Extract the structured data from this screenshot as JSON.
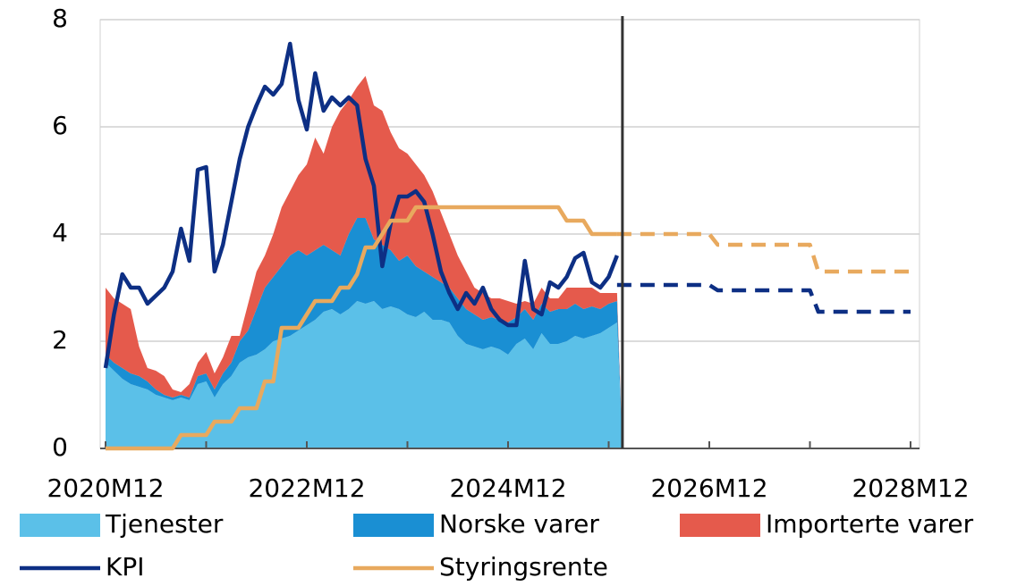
{
  "chart_data": {
    "type": "stacked-area-line",
    "categories": [
      "2020M12",
      null,
      null,
      null,
      null,
      null,
      null,
      null,
      null,
      null,
      null,
      null,
      null,
      null,
      null,
      null,
      null,
      null,
      null,
      null,
      null,
      null,
      null,
      null,
      "2022M12",
      null,
      null,
      null,
      null,
      null,
      null,
      null,
      null,
      null,
      null,
      null,
      null,
      null,
      null,
      null,
      null,
      null,
      null,
      null,
      null,
      null,
      null,
      null,
      "2024M12",
      null,
      null,
      null,
      null,
      null,
      null,
      null,
      null,
      null,
      null,
      null,
      null,
      null,
      null,
      null,
      null,
      null,
      null,
      null,
      null,
      null,
      null,
      null,
      "2026M12",
      null,
      null,
      null,
      null,
      null,
      null,
      null,
      null,
      null,
      null,
      null,
      null,
      null,
      null,
      null,
      null,
      null,
      null,
      null,
      null,
      null,
      null,
      null,
      "2028M12"
    ],
    "ylim": [
      0,
      8
    ],
    "yticks": [
      0,
      2,
      4,
      6,
      8
    ],
    "grid": true,
    "series": [
      {
        "name": "Tjenester",
        "kind": "area",
        "color": "#5bc0e8",
        "values": [
          1.6,
          1.45,
          1.3,
          1.2,
          1.15,
          1.1,
          1.0,
          0.95,
          0.9,
          0.95,
          0.9,
          1.2,
          1.25,
          0.95,
          1.2,
          1.35,
          1.6,
          1.7,
          1.75,
          1.85,
          2.0,
          2.05,
          2.1,
          2.2,
          2.3,
          2.4,
          2.55,
          2.6,
          2.5,
          2.6,
          2.75,
          2.7,
          2.75,
          2.6,
          2.65,
          2.6,
          2.5,
          2.45,
          2.55,
          2.4,
          2.4,
          2.35,
          2.1,
          1.95,
          1.9,
          1.85,
          1.9,
          1.85,
          1.75,
          1.95,
          2.05,
          1.85,
          2.15,
          1.95,
          1.95,
          2.0,
          2.1,
          2.05,
          2.1,
          2.15,
          2.25,
          2.35,
          null,
          null,
          null,
          null,
          null,
          null,
          null,
          null,
          null,
          null,
          null,
          null,
          null,
          null,
          null,
          null,
          null,
          null,
          null,
          null,
          null,
          null,
          null,
          null,
          null,
          null,
          null,
          null,
          null,
          null,
          null,
          null,
          null,
          null,
          null
        ]
      },
      {
        "name": "Norske varer",
        "kind": "area",
        "color": "#1a8fd3",
        "values": [
          0.15,
          0.15,
          0.2,
          0.2,
          0.2,
          0.15,
          0.1,
          0.05,
          0.05,
          0.05,
          0.05,
          0.15,
          0.15,
          0.15,
          0.2,
          0.25,
          0.4,
          0.5,
          0.85,
          1.15,
          1.2,
          1.35,
          1.5,
          1.5,
          1.3,
          1.3,
          1.25,
          1.1,
          1.1,
          1.4,
          1.55,
          1.6,
          1.15,
          1.2,
          1.05,
          0.9,
          1.1,
          0.95,
          0.75,
          0.8,
          0.7,
          0.65,
          0.7,
          0.65,
          0.6,
          0.55,
          0.55,
          0.55,
          0.6,
          0.5,
          0.55,
          0.55,
          0.55,
          0.6,
          0.65,
          0.6,
          0.6,
          0.55,
          0.55,
          0.45,
          0.45,
          0.4,
          null,
          null,
          null,
          null,
          null,
          null,
          null,
          null,
          null,
          null,
          null,
          null,
          null,
          null,
          null,
          null,
          null,
          null,
          null,
          null,
          null,
          null,
          null,
          null,
          null,
          null,
          null,
          null,
          null,
          null,
          null,
          null,
          null,
          null,
          null
        ]
      },
      {
        "name": "Importerte varer",
        "kind": "area",
        "color": "#e55a4c",
        "values": [
          1.25,
          1.2,
          1.2,
          1.2,
          0.55,
          0.25,
          0.35,
          0.35,
          0.15,
          0.05,
          0.25,
          0.25,
          0.4,
          0.3,
          0.3,
          0.5,
          0.1,
          0.5,
          0.7,
          0.6,
          0.8,
          1.1,
          1.2,
          1.4,
          1.7,
          2.1,
          1.7,
          2.3,
          2.7,
          2.5,
          2.45,
          2.65,
          2.5,
          2.5,
          2.2,
          2.1,
          1.9,
          1.9,
          1.8,
          1.6,
          1.3,
          1.0,
          0.8,
          0.7,
          0.5,
          0.5,
          0.35,
          0.4,
          0.4,
          0.25,
          0.15,
          0.3,
          0.3,
          0.25,
          0.2,
          0.4,
          0.3,
          0.4,
          0.35,
          0.3,
          0.2,
          0.15,
          null,
          null,
          null,
          null,
          null,
          null,
          null,
          null,
          null,
          null,
          null,
          null,
          null,
          null,
          null,
          null,
          null,
          null,
          null,
          null,
          null,
          null,
          null,
          null,
          null,
          null,
          null,
          null,
          null,
          null,
          null,
          null,
          null,
          null,
          null
        ]
      },
      {
        "name": "KPI",
        "kind": "line",
        "color": "#0d2f84",
        "values": [
          1.5,
          2.5,
          3.25,
          3.0,
          3.0,
          2.7,
          2.85,
          3.0,
          3.3,
          4.1,
          3.5,
          5.2,
          5.25,
          3.3,
          3.8,
          4.6,
          5.4,
          6.0,
          6.4,
          6.75,
          6.6,
          6.8,
          7.55,
          6.5,
          5.95,
          7.0,
          6.3,
          6.55,
          6.4,
          6.55,
          6.4,
          5.4,
          4.9,
          3.4,
          4.2,
          4.7,
          4.7,
          4.8,
          4.6,
          4.0,
          3.3,
          2.9,
          2.6,
          2.9,
          2.7,
          3.0,
          2.6,
          2.4,
          2.3,
          2.3,
          3.5,
          2.6,
          2.5,
          3.1,
          3.0,
          3.2,
          3.55,
          3.65,
          3.1,
          3.0,
          3.2,
          3.6,
          null,
          null,
          null,
          null,
          null,
          null,
          null,
          null,
          null,
          null,
          null,
          null,
          null,
          null,
          null,
          null,
          null,
          null,
          null,
          null,
          null,
          null,
          null,
          null,
          null,
          null,
          null,
          null,
          null,
          null,
          null,
          null,
          null,
          null,
          null
        ],
        "projection": [
          null,
          null,
          null,
          null,
          null,
          null,
          null,
          null,
          null,
          null,
          null,
          null,
          null,
          null,
          null,
          null,
          null,
          null,
          null,
          null,
          null,
          null,
          null,
          null,
          null,
          null,
          null,
          null,
          null,
          null,
          null,
          null,
          null,
          null,
          null,
          null,
          null,
          null,
          null,
          null,
          null,
          null,
          null,
          null,
          null,
          null,
          null,
          null,
          null,
          null,
          null,
          null,
          null,
          null,
          null,
          null,
          null,
          null,
          null,
          null,
          null,
          3.05,
          3.05,
          3.05,
          3.05,
          3.05,
          3.05,
          3.05,
          3.05,
          3.05,
          3.05,
          3.05,
          3.05,
          2.95,
          2.95,
          2.95,
          2.95,
          2.95,
          2.95,
          2.95,
          2.95,
          2.95,
          2.95,
          2.95,
          2.95,
          2.55,
          2.55,
          2.55,
          2.55,
          2.55,
          2.55,
          2.55,
          2.55,
          2.55,
          2.55,
          2.55,
          2.55
        ]
      },
      {
        "name": "Styringsrente",
        "kind": "line",
        "color": "#e8a95e",
        "values": [
          0,
          0,
          0,
          0,
          0,
          0,
          0,
          0,
          0,
          0.25,
          0.25,
          0.25,
          0.25,
          0.5,
          0.5,
          0.5,
          0.75,
          0.75,
          0.75,
          1.25,
          1.25,
          2.25,
          2.25,
          2.25,
          2.5,
          2.75,
          2.75,
          2.75,
          3.0,
          3.0,
          3.25,
          3.75,
          3.75,
          4.0,
          4.25,
          4.25,
          4.25,
          4.5,
          4.5,
          4.5,
          4.5,
          4.5,
          4.5,
          4.5,
          4.5,
          4.5,
          4.5,
          4.5,
          4.5,
          4.5,
          4.5,
          4.5,
          4.5,
          4.5,
          4.5,
          4.25,
          4.25,
          4.25,
          4.0,
          4.0,
          4.0,
          4.0,
          null,
          null,
          null,
          null,
          null,
          null,
          null,
          null,
          null,
          null,
          null,
          null,
          null,
          null,
          null,
          null,
          null,
          null,
          null,
          null,
          null,
          null,
          null,
          null,
          null,
          null,
          null,
          null,
          null,
          null,
          null,
          null,
          null,
          null,
          null
        ],
        "projection": [
          null,
          null,
          null,
          null,
          null,
          null,
          null,
          null,
          null,
          null,
          null,
          null,
          null,
          null,
          null,
          null,
          null,
          null,
          null,
          null,
          null,
          null,
          null,
          null,
          null,
          null,
          null,
          null,
          null,
          null,
          null,
          null,
          null,
          null,
          null,
          null,
          null,
          null,
          null,
          null,
          null,
          null,
          null,
          null,
          null,
          null,
          null,
          null,
          null,
          null,
          null,
          null,
          null,
          null,
          null,
          null,
          null,
          null,
          null,
          null,
          null,
          4.0,
          4.0,
          4.0,
          4.0,
          4.0,
          4.0,
          4.0,
          4.0,
          4.0,
          4.0,
          4.0,
          4.0,
          3.8,
          3.8,
          3.8,
          3.8,
          3.8,
          3.8,
          3.8,
          3.8,
          3.8,
          3.8,
          3.8,
          3.8,
          3.3,
          3.3,
          3.3,
          3.3,
          3.3,
          3.3,
          3.3,
          3.3,
          3.3,
          3.3,
          3.3,
          3.3
        ]
      }
    ]
  }
}
